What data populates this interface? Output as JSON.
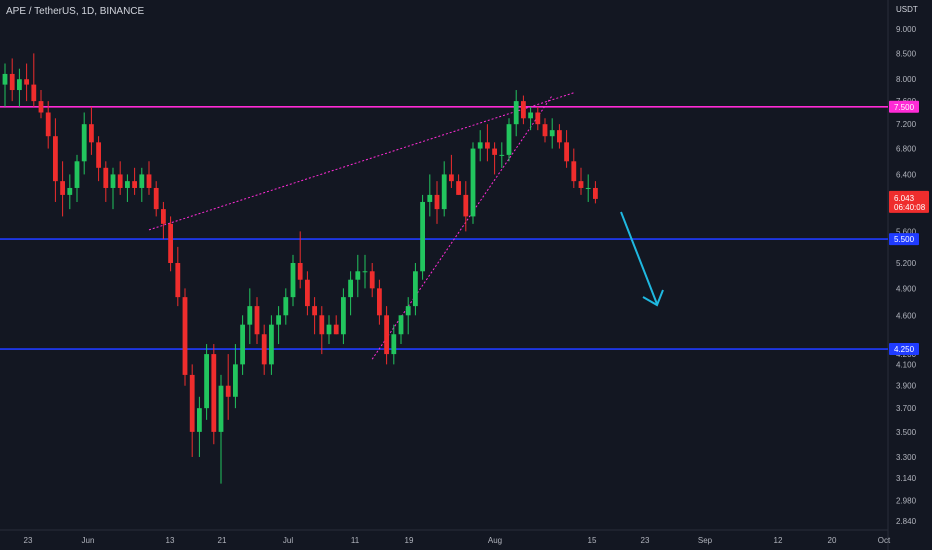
{
  "chart_title": "APE / TetherUS, 1D, BINANCE",
  "y_unit": "USDT",
  "colors": {
    "background": "#131722",
    "up": "#26a69a",
    "up_bright": "#22c55e",
    "down": "#ef2d2d",
    "resistance": "#ff2bd6",
    "support": "#1f3bff",
    "trendline": "#ff2bd6",
    "arrow": "#1fb8e0"
  },
  "chart_data": {
    "type": "candlestick",
    "title": "APE / TetherUS, 1D, BINANCE",
    "x_axis_labels": [
      "23",
      "Jun",
      "13",
      "21",
      "Jul",
      "11",
      "19",
      "Aug",
      "15",
      "23",
      "Sep",
      "12",
      "20",
      "Oct"
    ],
    "y_axis_labels": [
      "9.000",
      "8.500",
      "8.000",
      "7.600",
      "7.200",
      "6.800",
      "6.400",
      "5.600",
      "5.200",
      "4.900",
      "4.600",
      "4.200",
      "4.100",
      "3.900",
      "3.700",
      "3.500",
      "3.300",
      "3.140",
      "2.980",
      "2.840"
    ],
    "ylim": [
      2.78,
      9.6
    ],
    "y_scale": "log",
    "last_price": "6.043",
    "countdown": "06:40:08",
    "horizontal_levels": [
      {
        "label": "7.500",
        "value": 7.5,
        "color": "#ff2bd6"
      },
      {
        "label": "5.500",
        "value": 5.5,
        "color": "#1f3bff"
      },
      {
        "label": "4.250",
        "value": 4.25,
        "color": "#1f3bff"
      }
    ],
    "candles": [
      [
        7.9,
        8.3,
        7.5,
        8.1
      ],
      [
        8.1,
        8.4,
        7.6,
        7.8
      ],
      [
        7.8,
        8.2,
        7.5,
        8.0
      ],
      [
        8.0,
        8.3,
        7.6,
        7.9
      ],
      [
        7.9,
        8.5,
        7.5,
        7.6
      ],
      [
        7.6,
        7.8,
        7.3,
        7.4
      ],
      [
        7.4,
        7.6,
        6.8,
        7.0
      ],
      [
        7.0,
        7.3,
        6.0,
        6.3
      ],
      [
        6.3,
        6.6,
        5.8,
        6.1
      ],
      [
        6.1,
        6.4,
        5.9,
        6.2
      ],
      [
        6.2,
        6.7,
        6.0,
        6.6
      ],
      [
        6.6,
        7.4,
        6.4,
        7.2
      ],
      [
        7.2,
        7.5,
        6.7,
        6.9
      ],
      [
        6.9,
        7.0,
        6.3,
        6.5
      ],
      [
        6.5,
        6.6,
        6.0,
        6.2
      ],
      [
        6.2,
        6.5,
        5.9,
        6.4
      ],
      [
        6.4,
        6.6,
        6.1,
        6.2
      ],
      [
        6.2,
        6.4,
        6.0,
        6.3
      ],
      [
        6.3,
        6.5,
        6.1,
        6.2
      ],
      [
        6.2,
        6.5,
        6.0,
        6.4
      ],
      [
        6.4,
        6.6,
        6.1,
        6.2
      ],
      [
        6.2,
        6.3,
        5.8,
        5.9
      ],
      [
        5.9,
        6.0,
        5.5,
        5.7
      ],
      [
        5.7,
        5.8,
        5.1,
        5.2
      ],
      [
        5.2,
        5.4,
        4.7,
        4.8
      ],
      [
        4.8,
        4.9,
        3.9,
        4.0
      ],
      [
        4.0,
        4.1,
        3.3,
        3.5
      ],
      [
        3.5,
        3.8,
        3.3,
        3.7
      ],
      [
        3.7,
        4.3,
        3.6,
        4.2
      ],
      [
        4.2,
        4.3,
        3.4,
        3.5
      ],
      [
        3.5,
        4.0,
        3.1,
        3.9
      ],
      [
        3.9,
        4.2,
        3.6,
        3.8
      ],
      [
        3.8,
        4.3,
        3.7,
        4.1
      ],
      [
        4.1,
        4.6,
        4.0,
        4.5
      ],
      [
        4.5,
        4.9,
        4.3,
        4.7
      ],
      [
        4.7,
        4.8,
        4.3,
        4.4
      ],
      [
        4.4,
        4.5,
        4.0,
        4.1
      ],
      [
        4.1,
        4.6,
        4.0,
        4.5
      ],
      [
        4.5,
        4.7,
        4.3,
        4.6
      ],
      [
        4.6,
        4.9,
        4.5,
        4.8
      ],
      [
        4.8,
        5.3,
        4.7,
        5.2
      ],
      [
        5.2,
        5.6,
        4.9,
        5.0
      ],
      [
        5.0,
        5.1,
        4.6,
        4.7
      ],
      [
        4.7,
        4.8,
        4.4,
        4.6
      ],
      [
        4.6,
        4.7,
        4.2,
        4.4
      ],
      [
        4.4,
        4.6,
        4.3,
        4.5
      ],
      [
        4.5,
        4.6,
        4.4,
        4.4
      ],
      [
        4.4,
        4.9,
        4.3,
        4.8
      ],
      [
        4.8,
        5.1,
        4.6,
        5.0
      ],
      [
        5.0,
        5.3,
        4.8,
        5.1
      ],
      [
        5.1,
        5.3,
        4.9,
        5.1
      ],
      [
        5.1,
        5.2,
        4.8,
        4.9
      ],
      [
        4.9,
        5.0,
        4.5,
        4.6
      ],
      [
        4.6,
        4.7,
        4.1,
        4.2
      ],
      [
        4.2,
        4.5,
        4.1,
        4.4
      ],
      [
        4.4,
        4.6,
        4.3,
        4.6
      ],
      [
        4.6,
        4.8,
        4.4,
        4.7
      ],
      [
        4.7,
        5.2,
        4.6,
        5.1
      ],
      [
        5.1,
        6.1,
        5.0,
        6.0
      ],
      [
        6.0,
        6.4,
        5.8,
        6.1
      ],
      [
        6.1,
        6.3,
        5.7,
        5.9
      ],
      [
        5.9,
        6.6,
        5.8,
        6.4
      ],
      [
        6.4,
        6.7,
        6.2,
        6.3
      ],
      [
        6.3,
        6.4,
        6.1,
        6.1
      ],
      [
        6.1,
        6.3,
        5.6,
        5.8
      ],
      [
        5.8,
        6.9,
        5.7,
        6.8
      ],
      [
        6.8,
        7.1,
        6.6,
        6.9
      ],
      [
        6.9,
        7.2,
        6.6,
        6.8
      ],
      [
        6.8,
        6.9,
        6.4,
        6.7
      ],
      [
        6.7,
        6.9,
        6.5,
        6.7
      ],
      [
        6.7,
        7.3,
        6.6,
        7.2
      ],
      [
        7.2,
        7.8,
        7.0,
        7.6
      ],
      [
        7.6,
        7.7,
        7.2,
        7.3
      ],
      [
        7.3,
        7.5,
        7.1,
        7.4
      ],
      [
        7.4,
        7.5,
        7.1,
        7.2
      ],
      [
        7.2,
        7.3,
        6.9,
        7.0
      ],
      [
        7.0,
        7.3,
        6.8,
        7.1
      ],
      [
        7.1,
        7.2,
        6.8,
        6.9
      ],
      [
        6.9,
        7.1,
        6.5,
        6.6
      ],
      [
        6.6,
        6.8,
        6.2,
        6.3
      ],
      [
        6.3,
        6.5,
        6.1,
        6.2
      ],
      [
        6.2,
        6.4,
        6.0,
        6.2
      ],
      [
        6.2,
        6.3,
        5.98,
        6.043
      ]
    ]
  }
}
